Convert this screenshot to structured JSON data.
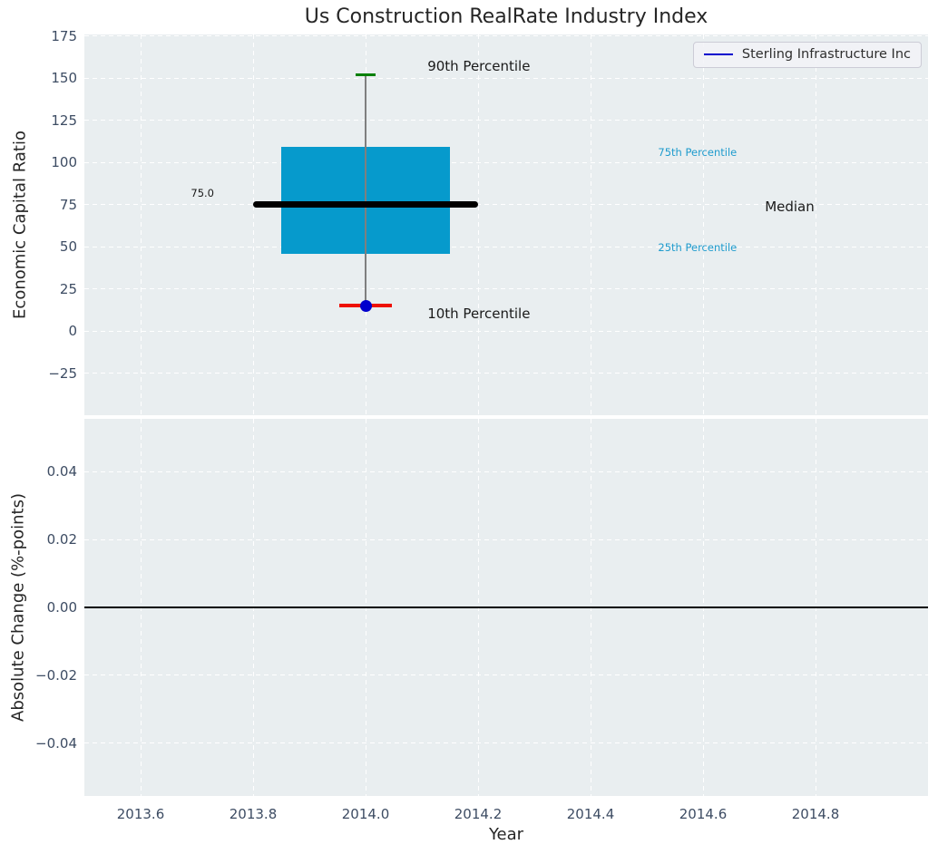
{
  "title": "Us Construction RealRate Industry Index",
  "legend": {
    "label": "Sterling Infrastructure Inc"
  },
  "colors": {
    "plot_background": "#e9eef0",
    "grid": "#ffffff",
    "tick_label": "#3d4c63",
    "text": "#262626",
    "box": "#069acc",
    "median": "#000000",
    "whisker": "#7f7f7f",
    "cap_top": "#008000",
    "cap_bottom": "#ee1100",
    "company": "#0000cd",
    "cyan_label": "#1e9bcd",
    "zero_line": "#000000"
  },
  "chart_data": [
    {
      "type": "boxplot",
      "title": "Us Construction RealRate Industry Index",
      "ylabel": "Economic Capital Ratio",
      "xlim": [
        2013.5,
        2015.0
      ],
      "ylim": [
        -50,
        176
      ],
      "grid": true,
      "legend_position": "upper right",
      "yticks": [
        175,
        150,
        125,
        100,
        75,
        50,
        25,
        0,
        -25
      ],
      "ytick_labels": [
        "175",
        "150",
        "125",
        "100",
        "75",
        "50",
        "25",
        "0",
        "−25"
      ],
      "xticks": [
        2013.6,
        2013.8,
        2014.0,
        2014.2,
        2014.4,
        2014.6,
        2014.8
      ],
      "xtick_labels": [
        "2013.6",
        "2013.8",
        "2014.0",
        "2014.2",
        "2014.4",
        "2014.6",
        "2014.8"
      ],
      "box": {
        "x": 2014.0,
        "p90": 152,
        "p75": 109.5,
        "median": 75.0,
        "p25": 46,
        "p10": 15,
        "box_half_width": 0.15,
        "median_half_width": 0.2,
        "cap90_half_width": 0.017,
        "cap10_half_width": 0.047,
        "median_label": "75.0"
      },
      "series": [
        {
          "name": "Sterling Infrastructure Inc",
          "x": [
            2014.0
          ],
          "y": [
            15
          ]
        }
      ],
      "annotations": [
        {
          "text": "90th Percentile",
          "x": 2014.11,
          "y": 157,
          "color": "#1a1a1a",
          "size": 15,
          "align": "left"
        },
        {
          "text": "10th Percentile",
          "x": 2014.11,
          "y": 10,
          "color": "#1a1a1a",
          "size": 15,
          "align": "left"
        },
        {
          "text": "75.0",
          "x": 2013.71,
          "y": 82,
          "color": "#1a1a1a",
          "size": 11.5,
          "align": "center"
        },
        {
          "text": "75th Percentile",
          "x": 2014.52,
          "y": 106,
          "color": "#1e9bcd",
          "size": 11.5,
          "align": "left"
        },
        {
          "text": "Median",
          "x": 2014.71,
          "y": 74,
          "color": "#1a1a1a",
          "size": 15,
          "align": "left"
        },
        {
          "text": "25th Percentile",
          "x": 2014.52,
          "y": 49.5,
          "color": "#1e9bcd",
          "size": 11.5,
          "align": "left"
        }
      ]
    },
    {
      "type": "line",
      "ylabel": "Absolute Change (%-points)",
      "xlabel": "Year",
      "xlim": [
        2013.5,
        2015.0
      ],
      "ylim": [
        -0.0555,
        0.0555
      ],
      "grid": true,
      "yticks": [
        0.04,
        0.02,
        0.0,
        -0.02,
        -0.04
      ],
      "ytick_labels": [
        "0.04",
        "0.02",
        "0.00",
        "−0.02",
        "−0.04"
      ],
      "xticks": [
        2013.6,
        2013.8,
        2014.0,
        2014.2,
        2014.4,
        2014.6,
        2014.8
      ],
      "xtick_labels": [
        "2013.6",
        "2013.8",
        "2014.0",
        "2014.2",
        "2014.4",
        "2014.6",
        "2014.8"
      ],
      "zero_line": 0.0,
      "series": []
    }
  ]
}
